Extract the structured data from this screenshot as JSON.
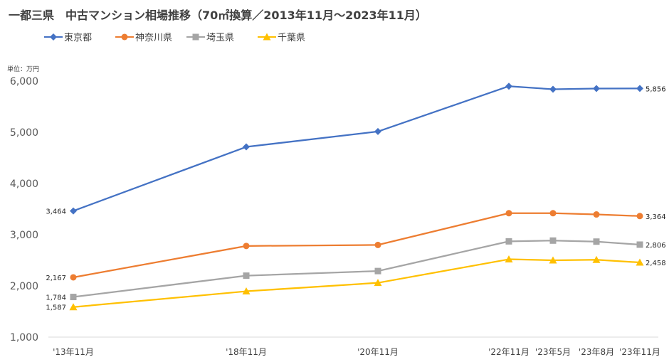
{
  "title": "一都三県　中古マンション相場推移（70㎡換算／2013年11月～2023年11月）",
  "unit": "単位：万円",
  "chart_data": {
    "type": "line",
    "title": "一都三県　中古マンション相場推移（70㎡換算／2013年11月～2023年11月）",
    "categories": [
      "'13年11月",
      "'18年11月",
      "'20年11月",
      "'22年11月",
      "'23年5月",
      "'23年8月",
      "'23年11月"
    ],
    "ylim": [
      1000,
      6000
    ],
    "yticks": [
      "1,000",
      "2,000",
      "3,000",
      "4,000",
      "5,000",
      "6,000"
    ],
    "ytick_values": [
      1000,
      2000,
      3000,
      4000,
      5000,
      6000
    ],
    "grid": true,
    "legend_position": "top-left",
    "series": [
      {
        "name": "東京都",
        "color": "#4472C4",
        "marker": "diamond",
        "values": [
          3464,
          4715,
          5015,
          5900,
          5840,
          5855,
          5856
        ],
        "labels": {
          "0": "3,464",
          "6": "5,856"
        }
      },
      {
        "name": "神奈川県",
        "color": "#ED7D31",
        "marker": "circle",
        "values": [
          2167,
          2780,
          2800,
          3420,
          3420,
          3395,
          3364
        ],
        "labels": {
          "0": "2,167",
          "6": "3,364"
        }
      },
      {
        "name": "埼玉県",
        "color": "#A5A5A5",
        "marker": "square",
        "values": [
          1784,
          2200,
          2290,
          2870,
          2885,
          2865,
          2806
        ],
        "labels": {
          "0": "1,784",
          "6": "2,806"
        }
      },
      {
        "name": "千葉県",
        "color": "#FFC000",
        "marker": "triangle",
        "values": [
          1587,
          1895,
          2060,
          2520,
          2500,
          2510,
          2458
        ],
        "labels": {
          "0": "1,587",
          "6": "2,458"
        }
      }
    ]
  }
}
